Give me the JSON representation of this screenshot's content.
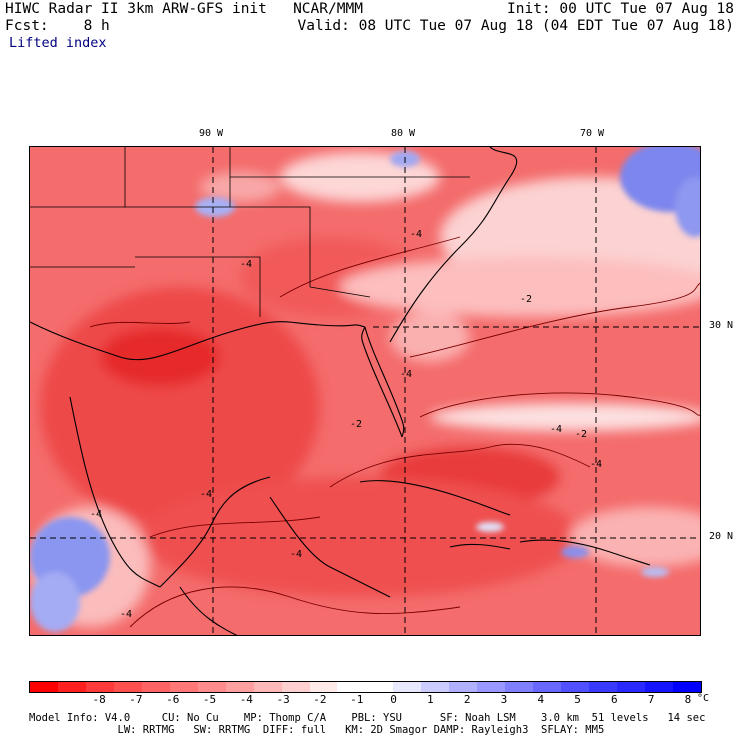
{
  "header": {
    "title_left": "HIWC Radar II 3km ARW-GFS init   NCAR/MMM",
    "fcst_line": "Fcst:    8 h",
    "field_name": "Lifted index",
    "init_line": "Init: 00 UTC Tue 07 Aug 18",
    "valid_line": "Valid: 08 UTC Tue 07 Aug 18 (04 EDT Tue 07 Aug 18)"
  },
  "map": {
    "lon_labels": [
      "90 W",
      "80 W",
      "70 W"
    ],
    "lat_labels": [
      "30 N",
      "20 N"
    ],
    "contour_labels": [
      "-4",
      "-4",
      "-4",
      "-4",
      "-4",
      "-2",
      "-2",
      "-4",
      "-4",
      "-4",
      "-2",
      "-4"
    ]
  },
  "colorbar": {
    "colors": [
      "#ff0000",
      "#ff2020",
      "#ff3a3a",
      "#ff5050",
      "#ff6464",
      "#ff7878",
      "#ff8c8c",
      "#ffa0a0",
      "#ffb8b8",
      "#ffd0d0",
      "#ffeaea",
      "#ffffff",
      "#ffffff",
      "#e8e8ff",
      "#ccccff",
      "#b0b0ff",
      "#9898ff",
      "#8080ff",
      "#6868ff",
      "#5050ff",
      "#3a3aff",
      "#2828ff",
      "#1414ff",
      "#0000ff"
    ],
    "labels": [
      "-8",
      "-7",
      "-6",
      "-5",
      "-4",
      "-3",
      "-2",
      "-1",
      "0",
      "1",
      "2",
      "3",
      "4",
      "5",
      "6",
      "7",
      "8"
    ],
    "unit": "°C"
  },
  "footer": {
    "line1": "Model Info: V4.0     CU: No Cu    MP: Thomp C/A    PBL: YSU      SF: Noah LSM    3.0 km  51 levels   14 sec",
    "line2": "              LW: RRTMG   SW: RRTMG  DIFF: full   KM: 2D Smagor DAMP: Rayleigh3  SFLAY: MM5"
  }
}
